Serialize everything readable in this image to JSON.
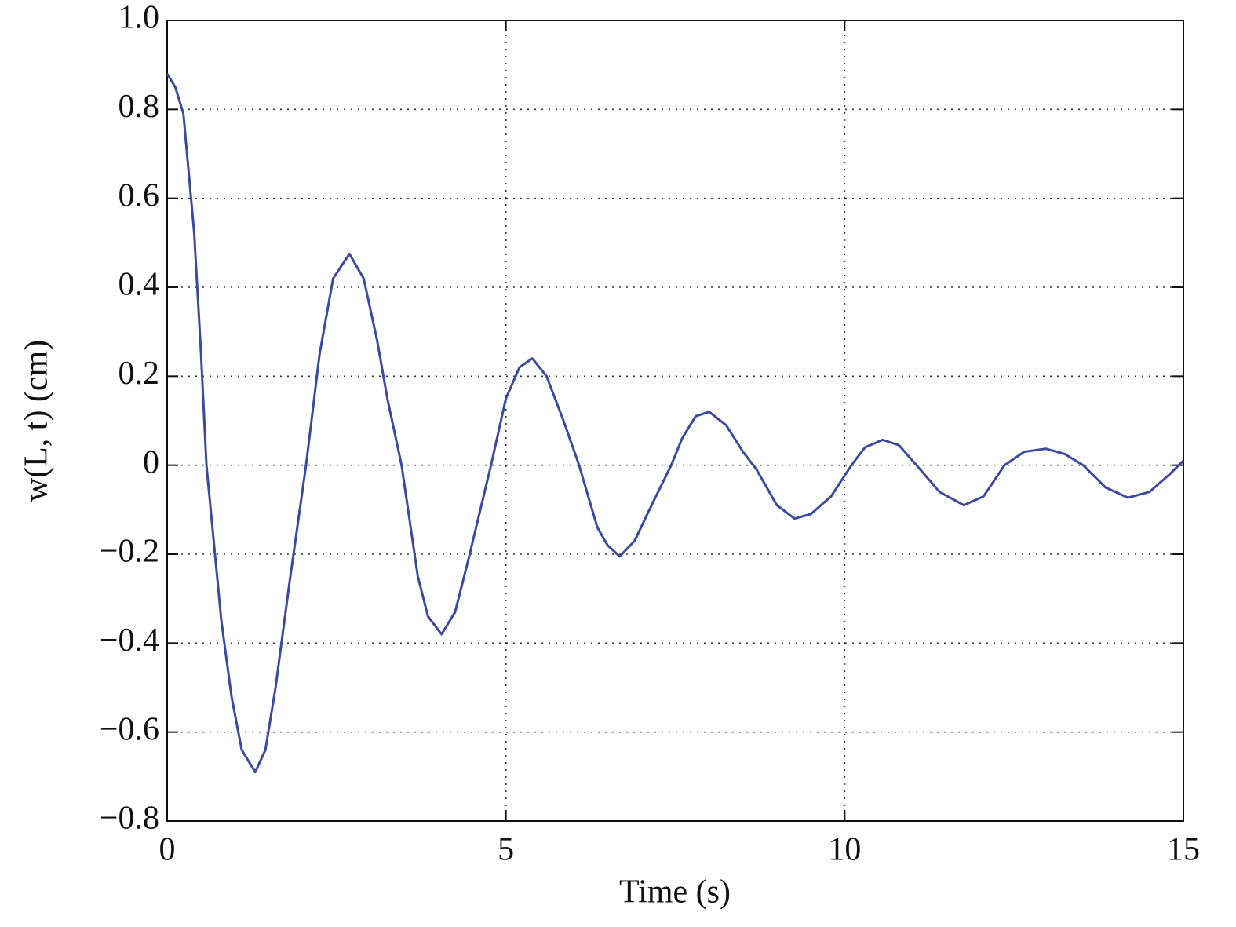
{
  "chart_data": {
    "type": "line",
    "xlabel": "Time (s)",
    "ylabel": "w(L, t) (cm)",
    "xlim": [
      0,
      15
    ],
    "xticks": [
      0,
      5,
      10,
      15
    ],
    "ylim": [
      -0.8,
      1.0
    ],
    "yticks": [
      {
        "value": -0.8,
        "label": "−0.8"
      },
      {
        "value": -0.6,
        "label": "−0.6"
      },
      {
        "value": -0.4,
        "label": "−0.4"
      },
      {
        "value": -0.2,
        "label": "−0.2"
      },
      0,
      0.2,
      0.4,
      0.6,
      0.8,
      {
        "value": 1,
        "label": "1.0"
      }
    ],
    "grid": true,
    "series": [
      {
        "name": "w(L, t)",
        "color": "#3a4a9f",
        "x": [
          0,
          0.12,
          0.24,
          0.4,
          0.5,
          0.58,
          0.8,
          0.95,
          1.1,
          1.3,
          1.45,
          1.6,
          1.8,
          2.05,
          2.25,
          2.45,
          2.69,
          2.9,
          3.1,
          3.25,
          3.46,
          3.7,
          3.85,
          4.05,
          4.25,
          4.45,
          4.78,
          5.0,
          5.2,
          5.39,
          5.6,
          5.85,
          6.08,
          6.35,
          6.5,
          6.68,
          6.9,
          7.15,
          7.44,
          7.6,
          7.8,
          8.0,
          8.25,
          8.5,
          8.7,
          9.0,
          9.26,
          9.5,
          9.8,
          10.1,
          10.3,
          10.56,
          10.8,
          11.06,
          11.4,
          11.76,
          12.05,
          12.36,
          12.65,
          12.97,
          13.25,
          13.52,
          13.85,
          14.18,
          14.5,
          14.8,
          15
        ],
        "values": [
          0.88,
          0.85,
          0.79,
          0.52,
          0.25,
          0.0,
          -0.35,
          -0.52,
          -0.64,
          -0.69,
          -0.64,
          -0.5,
          -0.27,
          0.0,
          0.25,
          0.42,
          0.475,
          0.42,
          0.28,
          0.15,
          0.0,
          -0.25,
          -0.34,
          -0.38,
          -0.33,
          -0.21,
          0.0,
          0.15,
          0.22,
          0.24,
          0.2,
          0.1,
          0.0,
          -0.14,
          -0.18,
          -0.205,
          -0.17,
          -0.09,
          0.0,
          0.06,
          0.11,
          0.12,
          0.09,
          0.03,
          -0.01,
          -0.09,
          -0.12,
          -0.11,
          -0.07,
          0.0,
          0.04,
          0.057,
          0.045,
          0.0,
          -0.06,
          -0.09,
          -0.07,
          0.0,
          0.03,
          0.037,
          0.025,
          0.0,
          -0.05,
          -0.073,
          -0.06,
          -0.02,
          0.01
        ]
      }
    ]
  }
}
